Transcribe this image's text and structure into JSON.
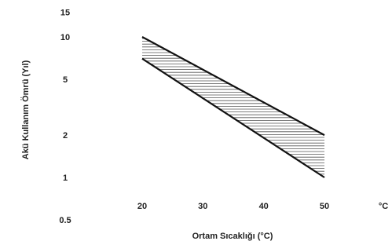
{
  "chart_data": {
    "type": "area",
    "title": "",
    "xlabel": "Ortam Sıcaklığı (°C)",
    "ylabel": "Akü Kullanım Ömrü (Yıl)",
    "x_unit_label": "°C",
    "yscale": "log",
    "xlim": [
      20,
      50
    ],
    "ylim": [
      0.5,
      15
    ],
    "x_ticks": [
      "20",
      "30",
      "40",
      "50"
    ],
    "y_ticks": [
      "15",
      "10",
      "5",
      "2",
      "1",
      "0.5"
    ],
    "grid": false,
    "legend": "none",
    "fill_style": "horizontal-hatch",
    "upper_boundary": {
      "x": [
        20,
        50
      ],
      "y": [
        10,
        2
      ]
    },
    "lower_boundary": {
      "x": [
        20,
        50
      ],
      "y": [
        7,
        1
      ]
    }
  }
}
